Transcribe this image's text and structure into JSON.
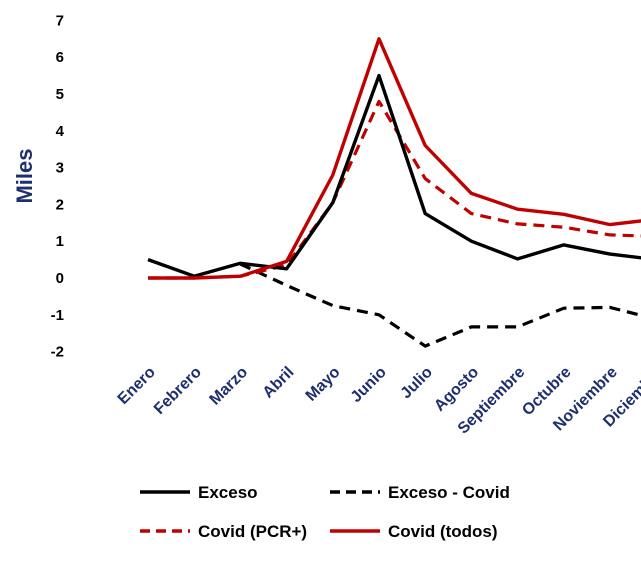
{
  "chart_data": {
    "type": "line",
    "title": "",
    "xlabel": "",
    "ylabel": "Miles",
    "ylim": [
      -2,
      7
    ],
    "yticks": [
      7,
      6,
      5,
      4,
      3,
      2,
      1,
      0,
      -1,
      -2
    ],
    "grid": false,
    "legend_position": "bottom",
    "categories": [
      "Enero",
      "Febrero",
      "Marzo",
      "Abril",
      "Mayo",
      "Junio",
      "Julio",
      "Agosto",
      "Septiembre",
      "Octubre",
      "Noviembre",
      "Diciembre"
    ],
    "series": [
      {
        "name": "Exceso",
        "color": "#000000",
        "dash": "solid",
        "values": [
          0.5,
          0.05,
          0.4,
          0.25,
          2.05,
          5.5,
          1.75,
          1.0,
          0.52,
          0.9,
          0.65,
          0.5
        ]
      },
      {
        "name": "Exceso - Covid",
        "color": "#000000",
        "dash": "dashed",
        "values": [
          null,
          null,
          0.38,
          -0.2,
          -0.75,
          -1.0,
          -1.85,
          -1.33,
          -1.33,
          -0.82,
          -0.8,
          -1.12
        ]
      },
      {
        "name": "Covid (PCR+)",
        "color": "#c00000",
        "dash": "dashed",
        "values": [
          0.0,
          0.0,
          0.05,
          0.35,
          2.05,
          4.8,
          2.7,
          1.75,
          1.47,
          1.38,
          1.17,
          1.13
        ]
      },
      {
        "name": "Covid (todos)",
        "color": "#c00000",
        "dash": "solid",
        "values": [
          0.0,
          0.0,
          0.05,
          0.45,
          2.8,
          6.5,
          3.6,
          2.3,
          1.87,
          1.73,
          1.45,
          1.6
        ]
      }
    ]
  }
}
